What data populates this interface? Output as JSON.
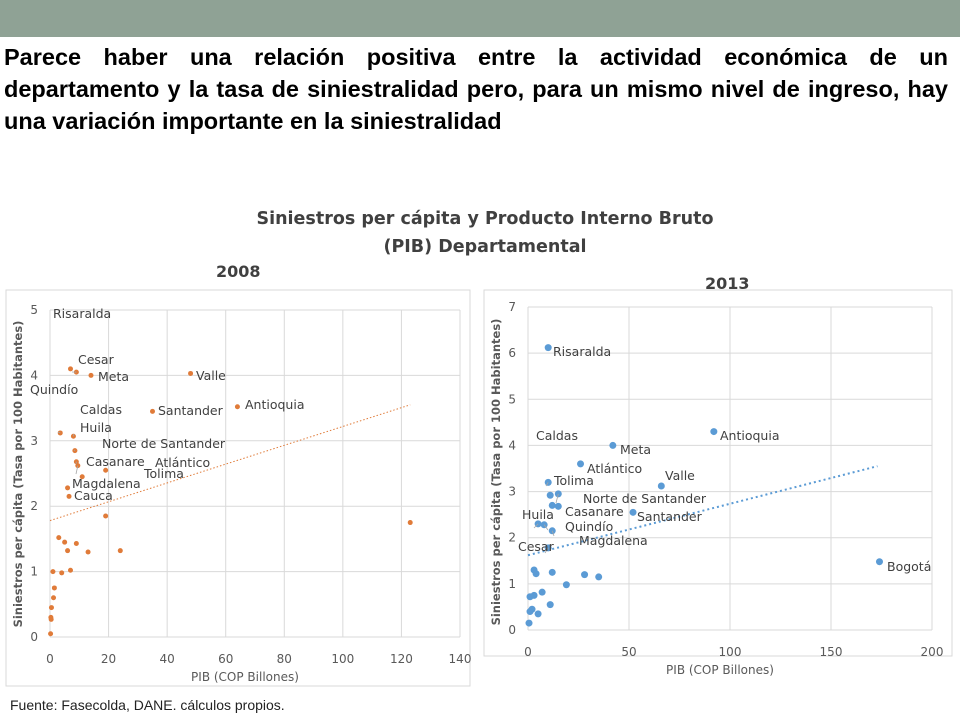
{
  "header": {
    "bar_color": "#8fa295",
    "headline": "Parece haber una relación positiva entre la actividad económica de un departamento y la tasa de siniestralidad pero, para un mismo nivel de ingreso, hay una variación importante en la siniestralidad"
  },
  "chart_title": {
    "line1": "Siniestros per cápita y Producto Interno Bruto",
    "line2": "(PIB) Departamental"
  },
  "source": "Fuente: Fasecolda, DANE. cálculos propios.",
  "chart_data": [
    {
      "type": "scatter",
      "title": "2008",
      "xlabel": "PIB (COP Billones)",
      "ylabel": "Siniestros per cápita (Tasa por 100 Habitantes)",
      "xlim": [
        0,
        140
      ],
      "ylim": [
        0,
        5
      ],
      "xticks": [
        0,
        20,
        40,
        60,
        80,
        100,
        120,
        140
      ],
      "yticks": [
        0,
        1,
        2,
        3,
        4,
        5
      ],
      "color": "#e07b39",
      "trendline": {
        "style": "dotted",
        "from": [
          0,
          1.78
        ],
        "to": [
          123,
          3.55
        ]
      },
      "labeled_points": [
        {
          "label": "Risaralda",
          "x": 7,
          "y": 4.1
        },
        {
          "label": "Cesar",
          "x": 9,
          "y": 4.05
        },
        {
          "label": "Meta",
          "x": 14,
          "y": 4.0
        },
        {
          "label": "Quindío",
          "x": 3.5,
          "y": 3.12
        },
        {
          "label": "Valle",
          "x": 48,
          "y": 4.03
        },
        {
          "label": "Antioquia",
          "x": 64,
          "y": 3.52
        },
        {
          "label": "Santander",
          "x": 35,
          "y": 3.45
        },
        {
          "label": "Caldas",
          "x": 8,
          "y": 3.07
        },
        {
          "label": "Huila",
          "x": 8.5,
          "y": 2.85
        },
        {
          "label": "Norte de Santander",
          "x": 9,
          "y": 2.68
        },
        {
          "label": "Casanare",
          "x": 9.5,
          "y": 2.62
        },
        {
          "label": "Atlántico",
          "x": 19,
          "y": 2.55
        },
        {
          "label": "Tolima",
          "x": 11,
          "y": 2.45
        },
        {
          "label": "Magdalena",
          "x": 6,
          "y": 2.28
        },
        {
          "label": "Cauca",
          "x": 6.5,
          "y": 2.15
        }
      ],
      "other_points": [
        [
          19,
          1.85
        ],
        [
          123,
          1.75
        ],
        [
          3,
          1.52
        ],
        [
          5,
          1.45
        ],
        [
          9,
          1.43
        ],
        [
          6,
          1.32
        ],
        [
          13,
          1.3
        ],
        [
          24,
          1.32
        ],
        [
          1,
          1.0
        ],
        [
          4,
          0.98
        ],
        [
          7,
          1.02
        ],
        [
          1.5,
          0.75
        ],
        [
          1.2,
          0.6
        ],
        [
          0.5,
          0.45
        ],
        [
          0.3,
          0.3
        ],
        [
          0.4,
          0.27
        ],
        [
          0.2,
          0.05
        ]
      ]
    },
    {
      "type": "scatter",
      "title": "2013",
      "xlabel": "PIB (COP Billones)",
      "ylabel": "Siniestros per cápita (Tasa por 100 Habitantes)",
      "xlim": [
        0,
        200
      ],
      "ylim": [
        0,
        7
      ],
      "xticks": [
        0,
        50,
        100,
        150,
        200
      ],
      "yticks": [
        0,
        1,
        2,
        3,
        4,
        5,
        6,
        7
      ],
      "color": "#5b9bd5",
      "trendline": {
        "style": "dotted",
        "from": [
          0,
          1.62
        ],
        "to": [
          173,
          3.55
        ]
      },
      "labeled_points": [
        {
          "label": "Risaralda",
          "x": 10,
          "y": 6.12
        },
        {
          "label": "Antioquia",
          "x": 92,
          "y": 4.3
        },
        {
          "label": "Meta",
          "x": 42,
          "y": 4.0
        },
        {
          "label": "Caldas",
          "x": 10,
          "y": 3.2
        },
        {
          "label": "Atlántico",
          "x": 26,
          "y": 3.6
        },
        {
          "label": "Valle",
          "x": 66,
          "y": 3.12
        },
        {
          "label": "Tolima",
          "x": 11,
          "y": 2.92
        },
        {
          "label": "Norte de Santander",
          "x": 15,
          "y": 2.95
        },
        {
          "label": "Santander",
          "x": 52,
          "y": 2.55
        },
        {
          "label": "Casanare",
          "x": 15,
          "y": 2.68
        },
        {
          "label": "Huila",
          "x": 5,
          "y": 2.3
        },
        {
          "label": "Quindío",
          "x": 8,
          "y": 2.28
        },
        {
          "label": "Magdalena",
          "x": 12,
          "y": 2.15
        },
        {
          "label": "Cesar",
          "x": 10,
          "y": 1.78
        },
        {
          "label": "Bogotá",
          "x": 174,
          "y": 1.48
        }
      ],
      "other_points": [
        [
          12,
          2.7
        ],
        [
          3,
          1.3
        ],
        [
          4,
          1.22
        ],
        [
          12,
          1.25
        ],
        [
          28,
          1.2
        ],
        [
          35,
          1.15
        ],
        [
          19,
          0.98
        ],
        [
          7,
          0.82
        ],
        [
          3,
          0.75
        ],
        [
          11,
          0.55
        ],
        [
          1,
          0.72
        ],
        [
          2,
          0.45
        ],
        [
          5,
          0.35
        ],
        [
          1,
          0.4
        ],
        [
          0.5,
          0.15
        ]
      ]
    }
  ]
}
